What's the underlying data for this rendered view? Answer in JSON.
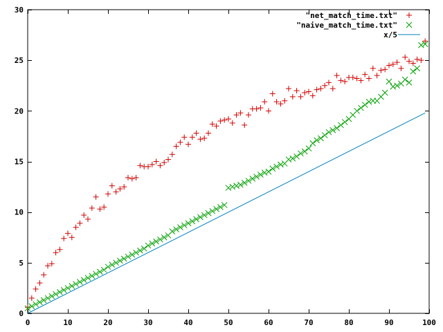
{
  "chart_data": {
    "type": "scatter",
    "title": "",
    "xlabel": "",
    "ylabel": "",
    "xlim": [
      0,
      100
    ],
    "ylim": [
      0,
      30
    ],
    "xticks": [
      0,
      10,
      20,
      30,
      40,
      50,
      60,
      70,
      80,
      90,
      100
    ],
    "yticks": [
      0,
      5,
      10,
      15,
      20,
      25,
      30
    ],
    "grid": false,
    "legend_position": "top-right",
    "series": [
      {
        "name": "\"net_match_time.txt\"",
        "marker": "plus",
        "color": "#d00000",
        "x": [
          0,
          1,
          2,
          3,
          4,
          5,
          6,
          7,
          8,
          9,
          10,
          11,
          12,
          13,
          14,
          15,
          16,
          17,
          18,
          19,
          20,
          21,
          22,
          23,
          24,
          25,
          26,
          27,
          28,
          29,
          30,
          31,
          32,
          33,
          34,
          35,
          36,
          37,
          38,
          39,
          40,
          41,
          42,
          43,
          44,
          45,
          46,
          47,
          48,
          49,
          50,
          51,
          52,
          53,
          54,
          55,
          56,
          57,
          58,
          59,
          60,
          61,
          62,
          63,
          64,
          65,
          66,
          67,
          68,
          69,
          70,
          71,
          72,
          73,
          74,
          75,
          76,
          77,
          78,
          79,
          80,
          81,
          82,
          83,
          84,
          85,
          86,
          87,
          88,
          89,
          90,
          91,
          92,
          93,
          94,
          95,
          96,
          97,
          98,
          99
        ],
        "y": [
          0.6,
          1.5,
          2.4,
          3.0,
          3.8,
          4.7,
          4.9,
          6.0,
          6.3,
          7.4,
          7.9,
          7.5,
          8.5,
          8.9,
          9.7,
          9.3,
          10.4,
          11.5,
          10.3,
          10.5,
          11.8,
          12.6,
          12.0,
          12.3,
          12.5,
          13.4,
          13.3,
          13.4,
          14.6,
          14.5,
          14.5,
          14.7,
          15.0,
          14.6,
          14.9,
          15.2,
          15.7,
          16.5,
          16.9,
          17.4,
          16.7,
          17.4,
          17.8,
          17.2,
          17.3,
          17.8,
          18.7,
          18.5,
          19.0,
          19.1,
          19.2,
          18.8,
          19.6,
          19.8,
          18.6,
          19.6,
          20.2,
          20.2,
          20.3,
          20.9,
          20.0,
          21.7,
          20.9,
          20.7,
          21.0,
          22.2,
          21.4,
          22.0,
          21.4,
          21.8,
          21.9,
          21.5,
          22.1,
          22.2,
          22.5,
          22.8,
          22.2,
          23.5,
          23.0,
          22.9,
          23.3,
          23.3,
          23.2,
          23.0,
          23.6,
          23.2,
          24.2,
          23.5,
          24.0,
          24.1,
          24.5,
          24.6,
          24.8,
          24.2,
          25.3,
          24.9,
          24.7,
          25.1,
          25.0,
          26.9
        ]
      },
      {
        "name": "\"naive_match_time.txt\"",
        "marker": "cross",
        "color": "#00a000",
        "x": [
          0,
          1,
          2,
          3,
          4,
          5,
          6,
          7,
          8,
          9,
          10,
          11,
          12,
          13,
          14,
          15,
          16,
          17,
          18,
          19,
          20,
          21,
          22,
          23,
          24,
          25,
          26,
          27,
          28,
          29,
          30,
          31,
          32,
          33,
          34,
          35,
          36,
          37,
          38,
          39,
          40,
          41,
          42,
          43,
          44,
          45,
          46,
          47,
          48,
          49,
          50,
          51,
          52,
          53,
          54,
          55,
          56,
          57,
          58,
          59,
          60,
          61,
          62,
          63,
          64,
          65,
          66,
          67,
          68,
          69,
          70,
          71,
          72,
          73,
          74,
          75,
          76,
          77,
          78,
          79,
          80,
          81,
          82,
          83,
          84,
          85,
          86,
          87,
          88,
          89,
          90,
          91,
          92,
          93,
          94,
          95,
          96,
          97,
          98,
          99
        ],
        "y": [
          0.5,
          0.7,
          0.9,
          1.1,
          1.3,
          1.5,
          1.7,
          1.9,
          2.1,
          2.3,
          2.5,
          2.7,
          2.9,
          3.1,
          3.3,
          3.5,
          3.7,
          3.9,
          4.1,
          4.3,
          4.6,
          4.8,
          5.0,
          5.2,
          5.4,
          5.6,
          5.8,
          6.0,
          6.2,
          6.4,
          6.7,
          6.9,
          7.1,
          7.3,
          7.5,
          7.7,
          8.1,
          8.3,
          8.5,
          8.7,
          8.9,
          9.1,
          9.3,
          9.5,
          9.7,
          9.9,
          10.1,
          10.3,
          10.5,
          10.7,
          12.4,
          12.5,
          12.6,
          12.7,
          12.9,
          13.1,
          13.3,
          13.5,
          13.7,
          13.9,
          14.0,
          14.3,
          14.5,
          14.7,
          14.8,
          15.2,
          15.3,
          15.5,
          15.8,
          16.0,
          16.3,
          16.8,
          17.1,
          17.3,
          17.6,
          17.9,
          18.1,
          18.3,
          18.6,
          18.9,
          19.2,
          19.6,
          20.0,
          20.3,
          20.6,
          20.9,
          21.0,
          21.0,
          21.4,
          21.8,
          22.9,
          22.4,
          22.5,
          22.7,
          23.1,
          22.8,
          23.9,
          24.2,
          26.5,
          26.6
        ]
      },
      {
        "name": "x/5",
        "marker": "line",
        "color": "#0080c0",
        "x": [
          0,
          99
        ],
        "y": [
          0,
          19.8
        ]
      }
    ]
  }
}
